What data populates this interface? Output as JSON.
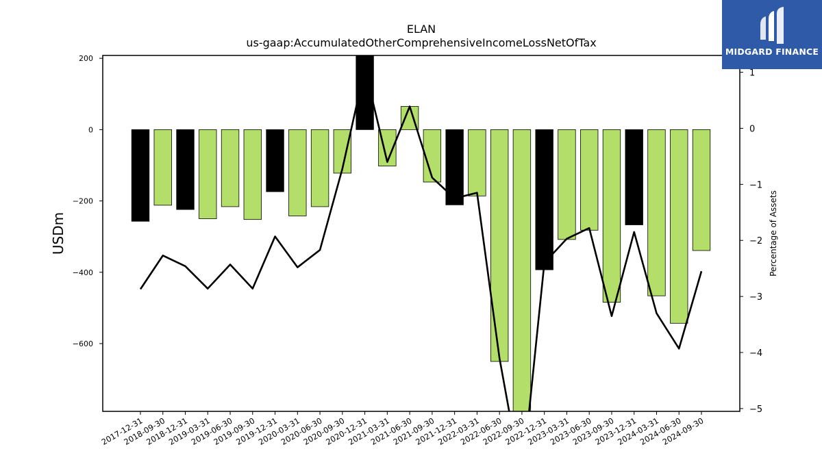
{
  "brand": {
    "name": "MIDGARD FINANCE",
    "logo_icon": "midgard-m-logo-icon",
    "bg_color": "#2f5aa8"
  },
  "chart_data": {
    "type": "bar",
    "title": "ELAN",
    "subtitle": "us-gaap:AccumulatedOtherComprehensiveIncomeLossNetOfTax",
    "ylabel": "USDm",
    "y2label": "Percentage of Assets",
    "ylim": [
      -790,
      208
    ],
    "y2lim": [
      -5.05,
      1.3
    ],
    "yticks": [
      200,
      0,
      -200,
      -400,
      -600
    ],
    "y2ticks": [
      1,
      0,
      -1,
      -2,
      -3,
      -4,
      -5
    ],
    "colors": {
      "annual_bar": "#000000",
      "quarter_bar": "#b3de69",
      "line": "#000000"
    },
    "categories": [
      "2017-12-31",
      "2018-09-30",
      "2018-12-31",
      "2019-03-31",
      "2019-06-30",
      "2019-09-30",
      "2019-12-31",
      "2020-03-31",
      "2020-06-30",
      "2020-09-30",
      "2020-12-31",
      "2021-03-31",
      "2021-06-30",
      "2021-09-30",
      "2021-12-31",
      "2022-03-31",
      "2022-06-30",
      "2022-09-30",
      "2022-12-31",
      "2023-03-31",
      "2023-06-30",
      "2023-09-30",
      "2023-12-31",
      "2024-03-31",
      "2024-06-30",
      "2024-09-30"
    ],
    "series": [
      {
        "kind": "bar",
        "axis": "left",
        "values": [
          -257,
          -212,
          -224,
          -250,
          -216,
          -252,
          -174,
          -242,
          -216,
          -122,
          210,
          -102,
          65,
          -147,
          -211,
          -186,
          -650,
          -790,
          -393,
          -308,
          -282,
          -484,
          -267,
          -466,
          -543,
          -339
        ],
        "year_end": [
          true,
          false,
          true,
          false,
          false,
          false,
          true,
          false,
          false,
          false,
          true,
          false,
          false,
          false,
          true,
          false,
          false,
          false,
          true,
          false,
          false,
          false,
          true,
          false,
          false,
          false
        ]
      },
      {
        "kind": "line",
        "axis": "right",
        "values": [
          -2.87,
          -2.27,
          -2.46,
          -2.86,
          -2.43,
          -2.86,
          -1.93,
          -2.48,
          -2.17,
          -0.72,
          1.07,
          -0.6,
          0.39,
          -0.88,
          -1.25,
          -1.15,
          -4.1,
          -6.3,
          -2.4,
          -1.97,
          -1.78,
          -3.35,
          -1.85,
          -3.3,
          -3.93,
          -2.55
        ]
      }
    ]
  }
}
